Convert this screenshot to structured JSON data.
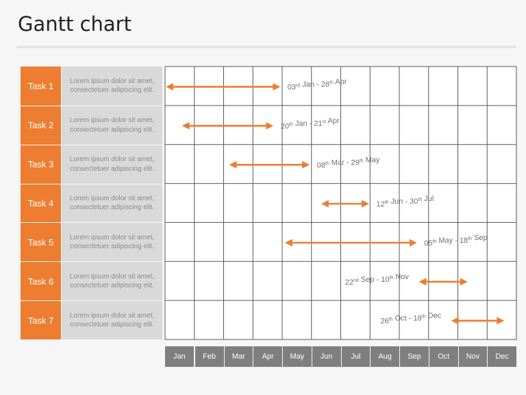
{
  "title": "Gantt chart",
  "colors": {
    "accent": "#ed7d31",
    "description_bg": "#d9d9d9",
    "month_bg": "#7f7f7f",
    "grid": "#555555"
  },
  "chart_data": {
    "type": "gantt",
    "title": "Gantt chart",
    "months": [
      "Jan",
      "Feb",
      "Mar",
      "Apr",
      "May",
      "Jun",
      "Jul",
      "Aug",
      "Sep",
      "Oct",
      "Nov",
      "Dec"
    ],
    "tasks": [
      {
        "name": "Task 1",
        "description": "Lorem ipsum  dolor sit amet, consectetuer adipiscing elit.",
        "start": "01-03",
        "end": "04-28",
        "label_start": "03",
        "label_start_sup": "rd",
        "label_start_month": "Jan",
        "label_end": "28",
        "label_end_sup": "th",
        "label_end_month": "Apr"
      },
      {
        "name": "Task 2",
        "description": "Lorem ipsum  dolor sit amet, consectetuer adipiscing elit.",
        "start": "01-20",
        "end": "04-21",
        "label_start": "20",
        "label_start_sup": "th",
        "label_start_month": "Jan",
        "label_end": "21",
        "label_end_sup": "st",
        "label_end_month": "Apr"
      },
      {
        "name": "Task 3",
        "description": "Lorem ipsum  dolor sit amet, consectetuer adipiscing elit.",
        "start": "03-08",
        "end": "05-29",
        "label_start": "08",
        "label_start_sup": "th",
        "label_start_month": "Mar",
        "label_end": "29",
        "label_end_sup": "th",
        "label_end_month": "May"
      },
      {
        "name": "Task 4",
        "description": "Lorem ipsum  dolor sit amet, consectetuer adipiscing elit.",
        "start": "06-12",
        "end": "07-30",
        "label_start": "12",
        "label_start_sup": "th",
        "label_start_month": "Jun",
        "label_end": "30",
        "label_end_sup": "th",
        "label_end_month": "Jul"
      },
      {
        "name": "Task 5",
        "description": "Lorem ipsum  dolor sit amet, consectetuer adipiscing elit.",
        "start": "05-05",
        "end": "09-18",
        "label_start": "05",
        "label_start_sup": "th",
        "label_start_month": "May",
        "label_end": "18",
        "label_end_sup": "th",
        "label_end_month": "Sep"
      },
      {
        "name": "Task 6",
        "description": "Lorem ipsum  dolor sit amet, consectetuer adipiscing elit.",
        "start": "09-22",
        "end": "11-10",
        "label_start": "22",
        "label_start_sup": "nd",
        "label_start_month": "Sep",
        "label_end": "10",
        "label_end_sup": "th",
        "label_end_month": "Nov"
      },
      {
        "name": "Task 7",
        "description": "Lorem ipsum  dolor sit amet, consectetuer adipiscing elit.",
        "start": "10-26",
        "end": "12-18",
        "label_start": "26",
        "label_start_sup": "th",
        "label_start_month": "Oct",
        "label_end": "18",
        "label_end_sup": "th",
        "label_end_month": "Dec"
      }
    ],
    "label_placement": [
      "right",
      "right",
      "right",
      "right",
      "right",
      "left",
      "left"
    ],
    "grid": true
  }
}
